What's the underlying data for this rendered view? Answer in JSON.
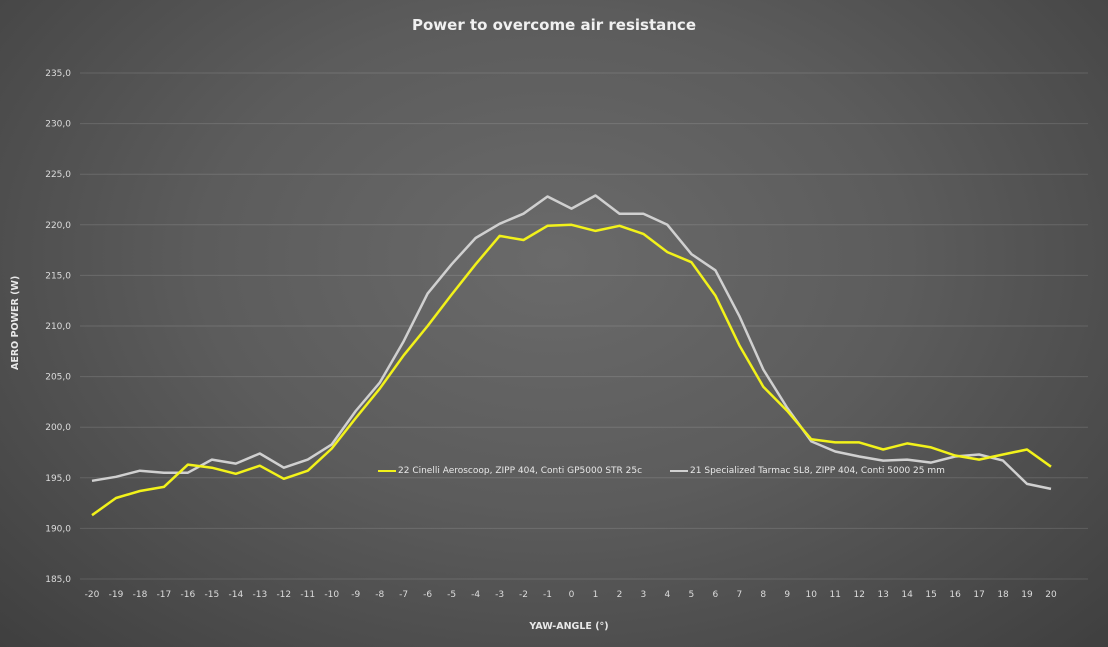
{
  "chart_data": {
    "type": "line",
    "title": "Power to overcome air resistance",
    "xlabel": "YAW-ANGLE (°)",
    "ylabel": "AERO POWER (W)",
    "ylim": [
      185,
      235
    ],
    "y_ticks": [
      "185,0",
      "190,0",
      "195,0",
      "200,0",
      "205,0",
      "210,0",
      "215,0",
      "220,0",
      "225,0",
      "230,0",
      "235,0"
    ],
    "x": [
      -20,
      -19,
      -18,
      -17,
      -16,
      -15,
      -14,
      -13,
      -12,
      -11,
      -10,
      -9,
      -8,
      -7,
      -6,
      -5,
      -4,
      -3,
      -2,
      -1,
      0,
      1,
      2,
      3,
      4,
      5,
      6,
      7,
      8,
      9,
      10,
      11,
      12,
      13,
      14,
      15,
      16,
      17,
      18,
      19,
      20
    ],
    "grid": "horizontal",
    "legend_position": "inside-bottom-center",
    "series": [
      {
        "name": "22 Cinelli Aeroscoop, ZIPP 404, Conti GP5000 STR 25c",
        "color": "#f2f21a",
        "values": [
          191.3,
          193.0,
          193.7,
          194.1,
          196.3,
          196.0,
          195.4,
          196.2,
          194.9,
          195.7,
          197.9,
          200.9,
          203.8,
          207.1,
          210.0,
          213.1,
          216.1,
          218.9,
          218.5,
          219.9,
          220.0,
          219.4,
          219.9,
          219.1,
          217.3,
          216.3,
          213.0,
          208.1,
          204.0,
          201.6,
          198.8,
          198.5,
          198.5,
          197.8,
          198.4,
          198.0,
          197.2,
          196.8,
          197.3,
          197.8,
          196.1
        ]
      },
      {
        "name": "21 Specialized Tarmac SL8, ZIPP 404, Conti 5000 25 mm",
        "color": "#d0d0d0",
        "values": [
          194.7,
          195.1,
          195.7,
          195.5,
          195.5,
          196.8,
          196.4,
          197.4,
          196.0,
          196.8,
          198.3,
          201.6,
          204.4,
          208.5,
          213.2,
          216.1,
          218.7,
          220.1,
          221.1,
          222.8,
          221.6,
          222.9,
          221.1,
          221.1,
          220.0,
          217.1,
          215.5,
          211.0,
          205.7,
          201.9,
          198.6,
          197.6,
          197.1,
          196.7,
          196.8,
          196.5,
          197.1,
          197.3,
          196.7,
          194.4,
          193.9
        ]
      }
    ]
  }
}
